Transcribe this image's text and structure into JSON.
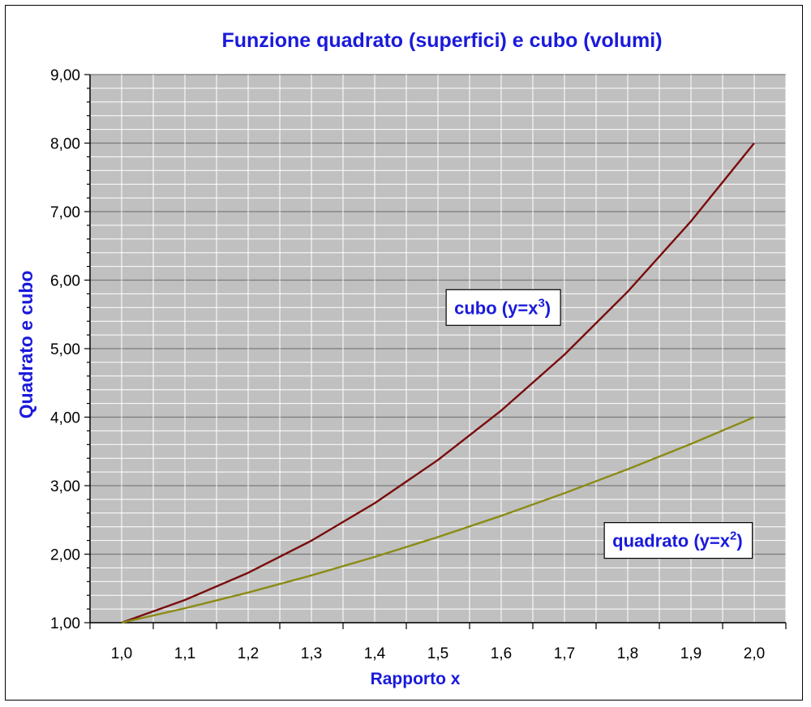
{
  "chart_data": {
    "type": "line",
    "title": "Funzione quadrato (superfici) e cubo (volumi)",
    "xlabel": "Rapporto x",
    "ylabel": "Quadrato e cubo",
    "x": [
      "1,0",
      "1,1",
      "1,2",
      "1,3",
      "1,4",
      "1,5",
      "1,6",
      "1,7",
      "1,8",
      "1,9",
      "2,0"
    ],
    "x_values": [
      1.0,
      1.1,
      1.2,
      1.3,
      1.4,
      1.5,
      1.6,
      1.7,
      1.8,
      1.9,
      2.0
    ],
    "ylim": [
      1,
      9
    ],
    "yticks": [
      "1,00",
      "2,00",
      "3,00",
      "4,00",
      "5,00",
      "6,00",
      "7,00",
      "8,00",
      "9,00"
    ],
    "grid": true,
    "series": [
      {
        "name": "cubo",
        "color": "#7a0c0c",
        "values": [
          1.0,
          1.331,
          1.728,
          2.197,
          2.744,
          3.375,
          4.096,
          4.913,
          5.832,
          6.859,
          8.0
        ]
      },
      {
        "name": "quadrato",
        "color": "#8b8b16",
        "values": [
          1.0,
          1.21,
          1.44,
          1.69,
          1.96,
          2.25,
          2.56,
          2.89,
          3.24,
          3.61,
          4.0
        ]
      }
    ],
    "annotations": [
      {
        "series": "cubo",
        "base": "cubo (y=x",
        "sup": "3",
        "tail": ")"
      },
      {
        "series": "quadrato",
        "base": "quadrato (y=x",
        "sup": "2",
        "tail": ")"
      }
    ]
  }
}
